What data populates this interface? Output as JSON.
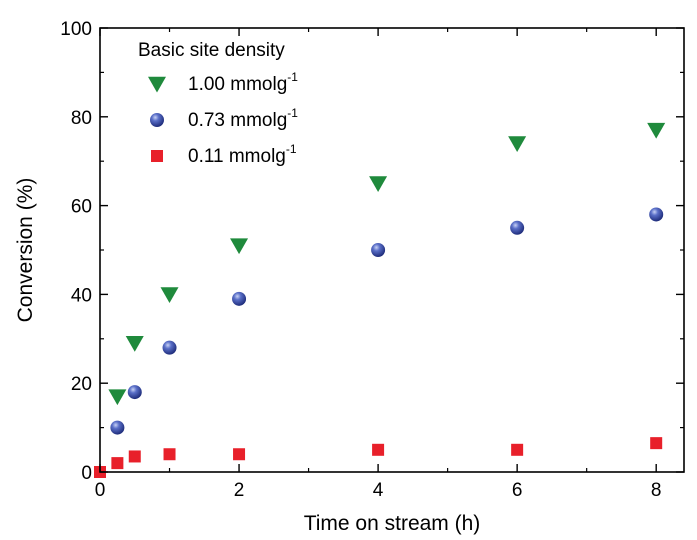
{
  "chart_data": {
    "type": "scatter",
    "title": "",
    "xlabel": "Time on stream (h)",
    "ylabel": "Conversion (%)",
    "xlim": [
      0,
      8.4
    ],
    "ylim": [
      0,
      100
    ],
    "x_ticks": [
      0,
      2,
      4,
      6,
      8
    ],
    "x_minor_ticks": [
      1,
      3,
      5,
      7
    ],
    "y_ticks": [
      0,
      20,
      40,
      60,
      80,
      100
    ],
    "y_minor_ticks": [
      10,
      30,
      50,
      70,
      90
    ],
    "grid": false,
    "legend": {
      "title": "Basic site density",
      "placement": "top-left"
    },
    "series": [
      {
        "name": "1.00 mmolg",
        "name_superscript": "-1",
        "marker": "triangle-down",
        "color": "#1f8a3c",
        "x": [
          0.25,
          0.5,
          1,
          2,
          4,
          6,
          8
        ],
        "y": [
          17,
          29,
          40,
          51,
          65,
          74,
          77
        ]
      },
      {
        "name": "0.73 mmolg",
        "name_superscript": "-1",
        "marker": "sphere",
        "color": "#2b3f9e",
        "x": [
          0.25,
          0.5,
          1,
          2,
          4,
          6,
          8
        ],
        "y": [
          10,
          18,
          28,
          39,
          50,
          55,
          58
        ]
      },
      {
        "name": "0.11 mmolg",
        "name_superscript": "-1",
        "marker": "square",
        "color": "#e8202a",
        "x": [
          0,
          0.25,
          0.5,
          1,
          2,
          4,
          6,
          8
        ],
        "y": [
          0,
          2,
          3.5,
          4,
          4,
          5,
          5,
          6.5
        ]
      }
    ]
  }
}
